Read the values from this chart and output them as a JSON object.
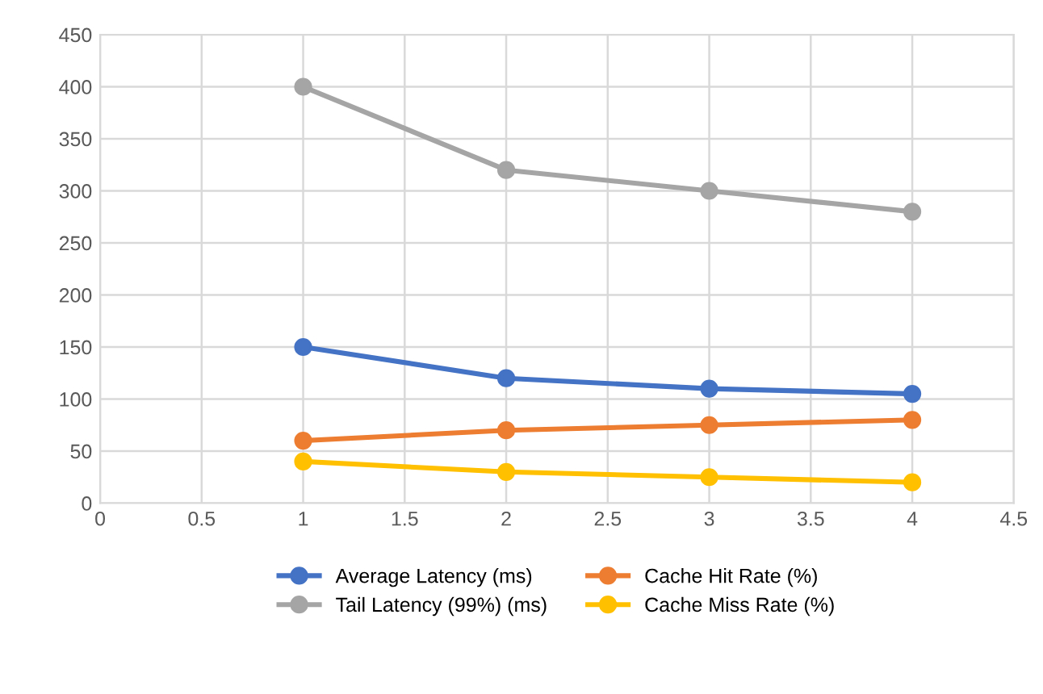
{
  "chart_data": {
    "type": "line",
    "x": [
      1,
      2,
      3,
      4
    ],
    "xlim": [
      0,
      4.5
    ],
    "xticks": [
      0,
      0.5,
      1,
      1.5,
      2,
      2.5,
      3,
      3.5,
      4,
      4.5
    ],
    "ylim": [
      0,
      450
    ],
    "yticks": [
      0,
      50,
      100,
      150,
      200,
      250,
      300,
      350,
      400,
      450
    ],
    "grid": true,
    "legend": "bottom",
    "marker": "circle",
    "line_style": "solid",
    "series": [
      {
        "name": "Average Latency (ms)",
        "color": "#4472c4",
        "values": [
          150,
          120,
          110,
          105
        ]
      },
      {
        "name": "Cache Hit Rate (%)",
        "color": "#ed7d31",
        "values": [
          60,
          70,
          75,
          80
        ]
      },
      {
        "name": "Tail Latency (99%) (ms)",
        "color": "#a5a5a5",
        "values": [
          400,
          320,
          300,
          280
        ]
      },
      {
        "name": "Cache Miss Rate (%)",
        "color": "#ffc000",
        "values": [
          40,
          30,
          25,
          20
        ]
      }
    ]
  }
}
